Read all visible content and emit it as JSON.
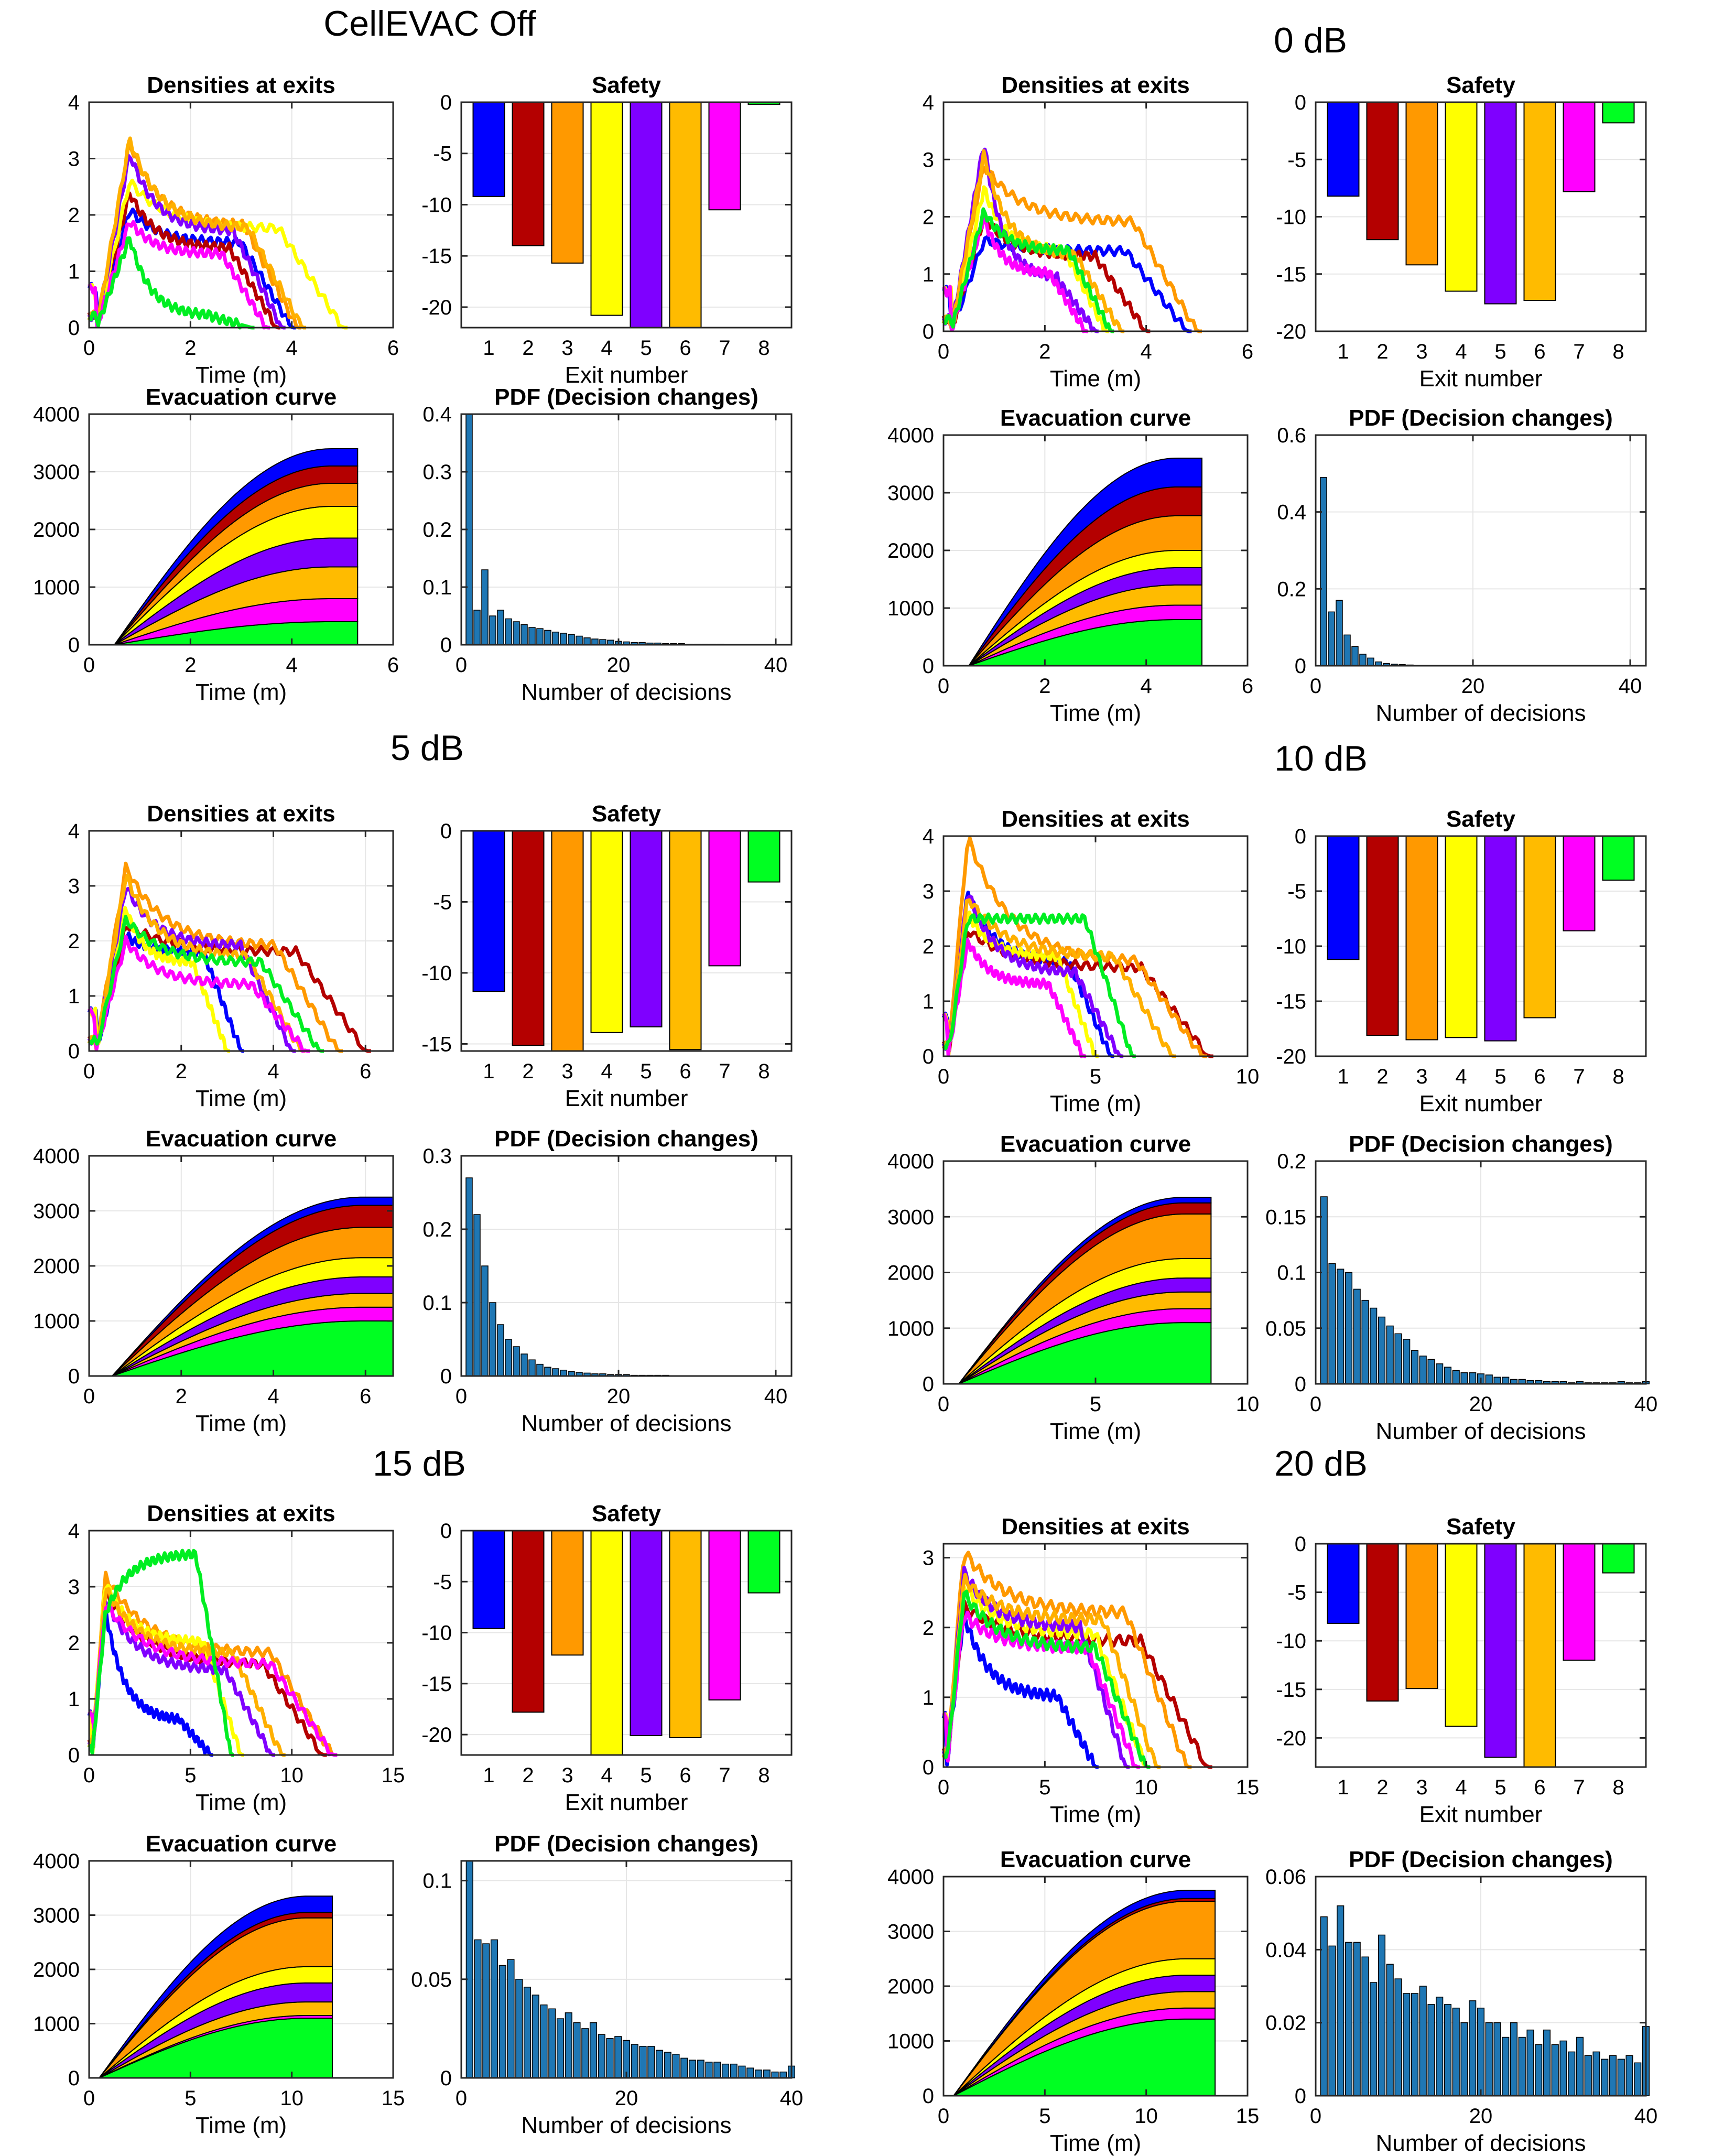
{
  "colors": {
    "exits": [
      "#0000FF",
      "#B40000",
      "#FF9900",
      "#FFFF00",
      "#7F00FF",
      "#FFBB00",
      "#FF00FF",
      "#00FF22"
    ],
    "density_lines": [
      "#0000FF",
      "#B40000",
      "#FF9900",
      "#FFFF00",
      "#8000FF",
      "#FFB000",
      "#FF00FF",
      "#00EE22"
    ],
    "pdf_bar": "#1F77B4",
    "axis": "#262626",
    "grid": "#E6E6E6"
  },
  "panel_titles": {
    "densities": "Densities at exits",
    "safety": "Safety",
    "evacuation": "Evacuation curve",
    "pdf": "PDF (Decision changes)"
  },
  "axis_labels": {
    "time": "Time (m)",
    "exit_number": "Exit number",
    "decisions": "Number of decisions"
  },
  "chart_data": [
    {
      "heading": "CellEVAC Off",
      "densities": {
        "type": "line",
        "xlim": [
          0,
          6
        ],
        "ylim": [
          0,
          4
        ],
        "xticks": [
          0,
          2,
          4,
          6
        ],
        "yticks": [
          0,
          1,
          2,
          3,
          4
        ],
        "end": [
          4.0,
          3.7,
          4.1,
          5.0,
          3.8,
          4.2,
          3.5,
          3.2
        ],
        "peak": [
          2.1,
          2.4,
          3.3,
          2.6,
          3.1,
          3.35,
          1.9,
          1.6
        ],
        "plateau": [
          1.5,
          1.4,
          1.8,
          1.75,
          1.7,
          1.75,
          1.3,
          0.2
        ],
        "peak_t": 0.8
      },
      "safety": {
        "type": "bar",
        "categories": [
          "1",
          "2",
          "3",
          "4",
          "5",
          "6",
          "7",
          "8"
        ],
        "values": [
          -9.2,
          -14,
          -15.7,
          -20.8,
          -23,
          -23,
          -10.5,
          -0.2
        ],
        "ylim": [
          -22,
          0
        ],
        "yticks": [
          0,
          -5,
          -10,
          -15,
          -20
        ]
      },
      "evacuation": {
        "type": "area",
        "xlim": [
          0,
          6
        ],
        "ylim": [
          0,
          4000
        ],
        "xticks": [
          0,
          2,
          4,
          6
        ],
        "yticks": [
          0,
          1000,
          2000,
          3000,
          4000
        ],
        "t_start": 0.5,
        "t_end": 5.3,
        "stack_order": [
          7,
          6,
          5,
          4,
          3,
          2,
          1,
          0
        ],
        "finals": [
          300,
          300,
          400,
          550,
          500,
          550,
          400,
          400
        ]
      },
      "pdf": {
        "type": "bar",
        "xlim": [
          0,
          42
        ],
        "ylim": [
          0,
          0.4
        ],
        "xticks": [
          0,
          20,
          40
        ],
        "yticks": [
          0,
          0.1,
          0.2,
          0.3,
          0.4
        ],
        "values": [
          0.4,
          0.06,
          0.13,
          0.05,
          0.06,
          0.045,
          0.04,
          0.035,
          0.03,
          0.028,
          0.025,
          0.022,
          0.02,
          0.018,
          0.015,
          0.012,
          0.01,
          0.009,
          0.008,
          0.006,
          0.005,
          0.004,
          0.004,
          0.003,
          0.003,
          0.002,
          0.002,
          0.002,
          0.001,
          0.001,
          0.001,
          0.001,
          0.001,
          0,
          0,
          0,
          0,
          0,
          0,
          0
        ]
      }
    },
    {
      "heading": "0 dB",
      "densities": {
        "type": "line",
        "xlim": [
          0,
          6
        ],
        "ylim": [
          0,
          4
        ],
        "xticks": [
          0,
          2,
          4,
          6
        ],
        "yticks": [
          0,
          1,
          2,
          3,
          4
        ],
        "end": [
          4.8,
          4.0,
          5.0,
          3.2,
          3.0,
          3.5,
          2.8,
          3.3
        ],
        "peak": [
          1.6,
          2.0,
          2.9,
          2.5,
          3.3,
          3.1,
          2.0,
          2.1
        ],
        "plateau": [
          1.4,
          1.3,
          1.9,
          1.4,
          0.9,
          1.3,
          1.0,
          1.4
        ],
        "peak_t": 0.8
      },
      "safety": {
        "type": "bar",
        "categories": [
          "1",
          "2",
          "3",
          "4",
          "5",
          "6",
          "7",
          "8"
        ],
        "values": [
          -8.2,
          -12,
          -14.2,
          -16.5,
          -17.6,
          -17.3,
          -7.8,
          -1.8
        ],
        "ylim": [
          -20,
          0
        ],
        "yticks": [
          0,
          -5,
          -10,
          -15,
          -20
        ]
      },
      "evacuation": {
        "type": "area",
        "xlim": [
          0,
          6
        ],
        "ylim": [
          0,
          4000
        ],
        "xticks": [
          0,
          2,
          4,
          6
        ],
        "yticks": [
          0,
          1000,
          2000,
          3000,
          4000
        ],
        "t_start": 0.5,
        "t_end": 5.1,
        "stack_order": [
          7,
          6,
          5,
          4,
          3,
          2,
          1,
          0
        ],
        "finals": [
          500,
          500,
          600,
          300,
          300,
          350,
          250,
          800
        ]
      },
      "pdf": {
        "type": "bar",
        "xlim": [
          0,
          42
        ],
        "ylim": [
          0,
          0.6
        ],
        "xticks": [
          0,
          20,
          40
        ],
        "yticks": [
          0,
          0.2,
          0.4,
          0.6
        ],
        "values": [
          0.49,
          0.14,
          0.17,
          0.08,
          0.05,
          0.03,
          0.02,
          0.01,
          0.006,
          0.004,
          0.003,
          0.002,
          0.001,
          0.001,
          0,
          0,
          0,
          0,
          0,
          0,
          0,
          0,
          0,
          0,
          0,
          0,
          0,
          0,
          0,
          0,
          0,
          0,
          0,
          0,
          0,
          0,
          0,
          0,
          0,
          0
        ]
      }
    },
    {
      "heading": "5 dB",
      "densities": {
        "type": "line",
        "xlim": [
          0,
          6.6
        ],
        "ylim": [
          0,
          4
        ],
        "xticks": [
          0,
          2,
          4,
          6
        ],
        "yticks": [
          0,
          1,
          2,
          3,
          4
        ],
        "end": [
          3.3,
          6.0,
          5.4,
          3.0,
          4.4,
          4.6,
          4.7,
          5.0
        ],
        "peak": [
          2.1,
          2.3,
          3.35,
          2.6,
          3.0,
          3.2,
          2.0,
          2.4
        ],
        "plateau": [
          1.8,
          1.8,
          1.9,
          1.6,
          1.9,
          1.7,
          1.2,
          1.6
        ],
        "peak_t": 0.8
      },
      "safety": {
        "type": "bar",
        "categories": [
          "1",
          "2",
          "3",
          "4",
          "5",
          "6",
          "7",
          "8"
        ],
        "values": [
          -11.3,
          -15.1,
          -16,
          -14.2,
          -13.8,
          -15.4,
          -9.5,
          -3.6
        ],
        "ylim": [
          -15.5,
          0
        ],
        "yticks": [
          0,
          -5,
          -10,
          -15
        ]
      },
      "evacuation": {
        "type": "area",
        "xlim": [
          0,
          6.6
        ],
        "ylim": [
          0,
          4000
        ],
        "xticks": [
          0,
          2,
          4,
          6
        ],
        "yticks": [
          0,
          1000,
          2000,
          3000,
          4000
        ],
        "t_start": 0.5,
        "t_end": 6.6,
        "stack_order": [
          7,
          6,
          5,
          4,
          3,
          2,
          1,
          0
        ],
        "finals": [
          150,
          400,
          550,
          350,
          300,
          250,
          250,
          1000
        ]
      },
      "pdf": {
        "type": "bar",
        "xlim": [
          0,
          42
        ],
        "ylim": [
          0,
          0.3
        ],
        "xticks": [
          0,
          20,
          40
        ],
        "yticks": [
          0,
          0.1,
          0.2,
          0.3
        ],
        "values": [
          0.27,
          0.22,
          0.15,
          0.1,
          0.07,
          0.05,
          0.04,
          0.03,
          0.022,
          0.016,
          0.012,
          0.01,
          0.008,
          0.006,
          0.005,
          0.004,
          0.003,
          0.003,
          0.002,
          0.002,
          0.002,
          0.001,
          0.001,
          0.001,
          0.001,
          0.001,
          0,
          0,
          0,
          0,
          0,
          0,
          0,
          0,
          0,
          0,
          0,
          0,
          0,
          0
        ]
      }
    },
    {
      "heading": "10 dB",
      "densities": {
        "type": "line",
        "xlim": [
          0,
          10
        ],
        "ylim": [
          0,
          4
        ],
        "xticks": [
          0,
          5,
          10
        ],
        "yticks": [
          0,
          1,
          2,
          3,
          4
        ],
        "end": [
          5.5,
          8.7,
          8.5,
          5.0,
          5.8,
          7.5,
          4.6,
          6.2
        ],
        "peak": [
          3.0,
          2.3,
          4.0,
          2.6,
          3.0,
          2.9,
          2.1,
          2.5
        ],
        "plateau": [
          1.7,
          1.6,
          1.7,
          1.8,
          1.5,
          1.8,
          1.3,
          2.5
        ],
        "peak_t": 0.8
      },
      "safety": {
        "type": "bar",
        "categories": [
          "1",
          "2",
          "3",
          "4",
          "5",
          "6",
          "7",
          "8"
        ],
        "values": [
          -11.2,
          -18.1,
          -18.5,
          -18.3,
          -18.6,
          -16.5,
          -8.6,
          -4
        ],
        "ylim": [
          -20,
          0
        ],
        "yticks": [
          0,
          -5,
          -10,
          -15,
          -20
        ]
      },
      "evacuation": {
        "type": "area",
        "xlim": [
          0,
          10
        ],
        "ylim": [
          0,
          4000
        ],
        "xticks": [
          0,
          5,
          10
        ],
        "yticks": [
          0,
          1000,
          2000,
          3000,
          4000
        ],
        "t_start": 0.5,
        "t_end": 8.8,
        "stack_order": [
          7,
          6,
          5,
          4,
          3,
          2,
          1,
          0
        ],
        "finals": [
          100,
          200,
          800,
          350,
          250,
          300,
          250,
          1100
        ]
      },
      "pdf": {
        "type": "bar",
        "xlim": [
          0,
          40
        ],
        "ylim": [
          0,
          0.2
        ],
        "xticks": [
          0,
          20,
          40
        ],
        "yticks": [
          0,
          0.05,
          0.1,
          0.15,
          0.2
        ],
        "values": [
          0.168,
          0.108,
          0.103,
          0.1,
          0.085,
          0.075,
          0.068,
          0.06,
          0.052,
          0.045,
          0.04,
          0.03,
          0.025,
          0.022,
          0.018,
          0.015,
          0.012,
          0.01,
          0.01,
          0.009,
          0.008,
          0.006,
          0.006,
          0.004,
          0.004,
          0.003,
          0.003,
          0.002,
          0.002,
          0.002,
          0.001,
          0.002,
          0.001,
          0.001,
          0.001,
          0.001,
          0.002,
          0.001,
          0.001,
          0.002
        ]
      }
    },
    {
      "heading": "15 dB",
      "densities": {
        "type": "line",
        "xlim": [
          0,
          15
        ],
        "ylim": [
          0,
          4
        ],
        "xticks": [
          0,
          5,
          10,
          15
        ],
        "yticks": [
          0,
          1,
          2,
          3,
          4
        ],
        "end": [
          6.0,
          11.5,
          12.0,
          7.5,
          9.0,
          9.5,
          12.0,
          7.0
        ],
        "peak": [
          2.6,
          2.9,
          3.2,
          3.1,
          2.8,
          3.0,
          2.7,
          2.5
        ],
        "plateau": [
          0.6,
          1.6,
          1.8,
          2.0,
          1.5,
          1.8,
          1.6,
          3.6
        ],
        "peak_t": 0.8
      },
      "safety": {
        "type": "bar",
        "categories": [
          "1",
          "2",
          "3",
          "4",
          "5",
          "6",
          "7",
          "8"
        ],
        "values": [
          -9.6,
          -17.8,
          -12.2,
          -22,
          -20.1,
          -20.3,
          -16.6,
          -6.1
        ],
        "ylim": [
          -22,
          0
        ],
        "yticks": [
          0,
          -5,
          -10,
          -15,
          -20
        ]
      },
      "evacuation": {
        "type": "area",
        "xlim": [
          0,
          15
        ],
        "ylim": [
          0,
          4000
        ],
        "xticks": [
          0,
          5,
          10,
          15
        ],
        "yticks": [
          0,
          1000,
          2000,
          3000,
          4000
        ],
        "t_start": 0.5,
        "t_end": 12,
        "stack_order": [
          7,
          6,
          5,
          4,
          3,
          2,
          1,
          0
        ],
        "finals": [
          300,
          100,
          900,
          300,
          350,
          250,
          50,
          1100
        ]
      },
      "pdf": {
        "type": "bar",
        "xlim": [
          0,
          40
        ],
        "ylim": [
          0,
          0.11
        ],
        "xticks": [
          0,
          20,
          40
        ],
        "yticks": [
          0,
          0.05,
          0.1
        ],
        "values": [
          0.11,
          0.07,
          0.068,
          0.07,
          0.057,
          0.06,
          0.05,
          0.046,
          0.042,
          0.037,
          0.035,
          0.03,
          0.033,
          0.028,
          0.025,
          0.028,
          0.022,
          0.02,
          0.021,
          0.019,
          0.017,
          0.016,
          0.016,
          0.014,
          0.013,
          0.012,
          0.01,
          0.009,
          0.009,
          0.008,
          0.008,
          0.007,
          0.007,
          0.006,
          0.005,
          0.004,
          0.004,
          0.003,
          0.003,
          0.006
        ]
      }
    },
    {
      "heading": "20 dB",
      "densities": {
        "type": "line",
        "xlim": [
          0,
          15
        ],
        "ylim": [
          0,
          3.2
        ],
        "xticks": [
          0,
          5,
          10,
          15
        ],
        "yticks": [
          0,
          1,
          2,
          3
        ],
        "end": [
          7.5,
          13.0,
          12.0,
          10.0,
          9.0,
          10.5,
          9.5,
          10.0
        ],
        "peak": [
          2.2,
          2.3,
          3.1,
          2.6,
          2.8,
          2.7,
          2.2,
          2.5
        ],
        "plateau": [
          1.0,
          1.8,
          2.2,
          1.9,
          2.0,
          2.1,
          1.7,
          1.7
        ],
        "peak_t": 1.0
      },
      "safety": {
        "type": "bar",
        "categories": [
          "1",
          "2",
          "3",
          "4",
          "5",
          "6",
          "7",
          "8"
        ],
        "values": [
          -8.2,
          -16.2,
          -14.9,
          -18.8,
          -22,
          -24,
          -12,
          -3
        ],
        "ylim": [
          -23,
          0
        ],
        "yticks": [
          0,
          -5,
          -10,
          -15,
          -20
        ]
      },
      "evacuation": {
        "type": "area",
        "xlim": [
          0,
          15
        ],
        "ylim": [
          0,
          4000
        ],
        "xticks": [
          0,
          5,
          10,
          15
        ],
        "yticks": [
          0,
          1000,
          2000,
          3000,
          4000
        ],
        "t_start": 0.5,
        "t_end": 13.4,
        "stack_order": [
          7,
          6,
          5,
          4,
          3,
          2,
          1,
          0
        ],
        "finals": [
          150,
          50,
          1050,
          300,
          300,
          300,
          200,
          1400
        ]
      },
      "pdf": {
        "type": "bar",
        "xlim": [
          0,
          40
        ],
        "ylim": [
          0,
          0.06
        ],
        "xticks": [
          0,
          20,
          40
        ],
        "yticks": [
          0,
          0.02,
          0.04,
          0.06
        ],
        "values": [
          0.049,
          0.041,
          0.052,
          0.042,
          0.042,
          0.038,
          0.031,
          0.044,
          0.036,
          0.032,
          0.028,
          0.028,
          0.03,
          0.025,
          0.027,
          0.025,
          0.024,
          0.02,
          0.026,
          0.024,
          0.02,
          0.02,
          0.016,
          0.02,
          0.016,
          0.018,
          0.014,
          0.018,
          0.014,
          0.015,
          0.012,
          0.016,
          0.011,
          0.012,
          0.01,
          0.011,
          0.01,
          0.011,
          0.009,
          0.019
        ]
      }
    }
  ]
}
